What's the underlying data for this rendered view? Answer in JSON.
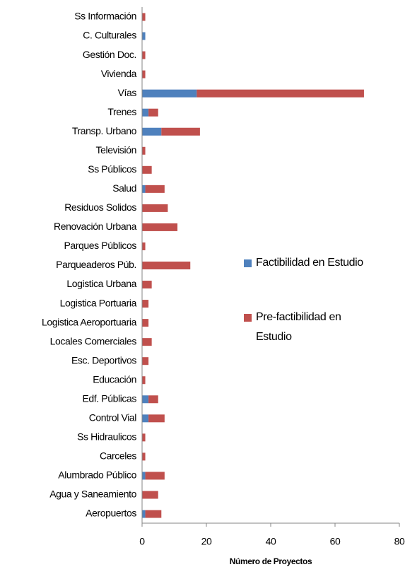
{
  "chart_data": {
    "type": "stacked_bar_horizontal",
    "categories": [
      "Ss Información",
      "C. Culturales",
      "Gestión Doc.",
      "Vivienda",
      "Vías",
      "Trenes",
      "Transp. Urbano",
      "Televisión",
      "Ss Públicos",
      "Salud",
      "Residuos Solidos",
      "Renovación Urbana",
      "Parques Públicos",
      "Parqueaderos Púb.",
      "Logistica Urbana",
      "Logistica Portuaria",
      "Logistica Aeroportuaria",
      "Locales Comerciales",
      "Esc. Deportivos",
      "Educación",
      "Edf. Públicas",
      "Control Vial",
      "Ss Hidraulicos",
      "Carceles",
      "Alumbrado Público",
      "Agua y Saneamiento",
      "Aeropuertos"
    ],
    "series": [
      {
        "name": "Factibilidad en Estudio",
        "color": "#4f81bd",
        "values": [
          0,
          1,
          0,
          0,
          17,
          2,
          6,
          0,
          0,
          1,
          0,
          0,
          0,
          0,
          0,
          0,
          0,
          0,
          0,
          0,
          2,
          2,
          0,
          0,
          1,
          0,
          1
        ]
      },
      {
        "name": "Pre-factibilidad en Estudio",
        "color": "#c0504d",
        "values": [
          1,
          0,
          1,
          1,
          52,
          3,
          12,
          1,
          3,
          6,
          8,
          11,
          1,
          15,
          3,
          2,
          2,
          3,
          2,
          1,
          3,
          5,
          1,
          1,
          6,
          5,
          5
        ]
      }
    ],
    "x_label": "Número de Proyectos",
    "xlim": [
      0,
      80
    ],
    "xticks": [
      0,
      20,
      40,
      60,
      80
    ],
    "legend": "right"
  }
}
